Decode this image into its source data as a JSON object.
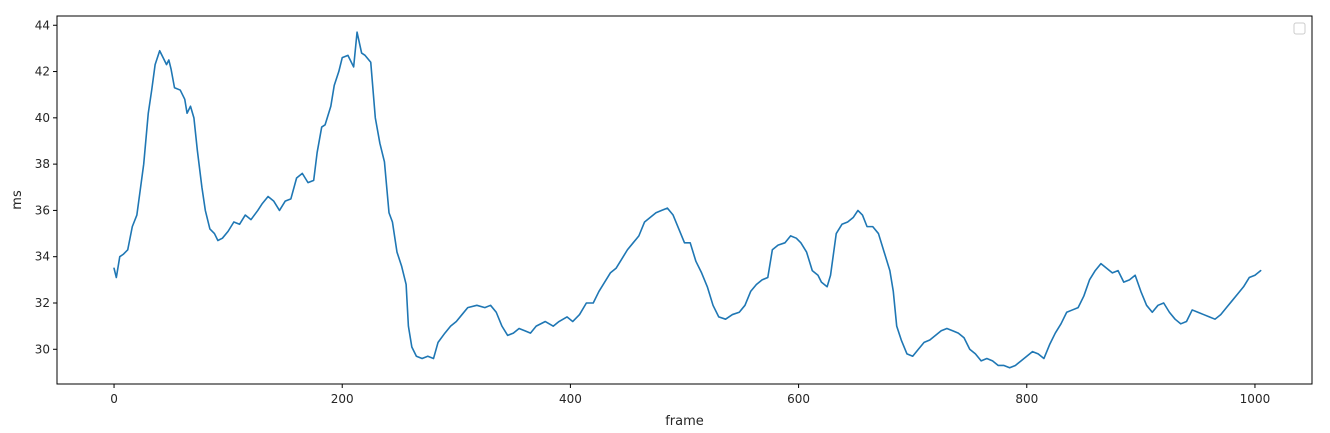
{
  "chart_data": {
    "type": "line",
    "title": "",
    "xlabel": "frame",
    "ylabel": "ms",
    "xlim": [
      -50,
      1050
    ],
    "ylim": [
      28.5,
      44.4
    ],
    "x_ticks": [
      0,
      200,
      400,
      600,
      800,
      1000
    ],
    "y_ticks": [
      30,
      32,
      34,
      36,
      38,
      40,
      42,
      44
    ],
    "grid": false,
    "legend": "top-right",
    "legend_entries": [],
    "series": [
      {
        "color": "#1f77b4",
        "points": [
          [
            0,
            33.5
          ],
          [
            2,
            33.1
          ],
          [
            5,
            34.0
          ],
          [
            8,
            34.1
          ],
          [
            12,
            34.3
          ],
          [
            16,
            35.3
          ],
          [
            20,
            35.8
          ],
          [
            23,
            36.9
          ],
          [
            26,
            38.0
          ],
          [
            30,
            40.2
          ],
          [
            33,
            41.2
          ],
          [
            36,
            42.3
          ],
          [
            40,
            42.9
          ],
          [
            43,
            42.6
          ],
          [
            46,
            42.3
          ],
          [
            48,
            42.5
          ],
          [
            50,
            42.1
          ],
          [
            53,
            41.3
          ],
          [
            58,
            41.2
          ],
          [
            62,
            40.8
          ],
          [
            64,
            40.2
          ],
          [
            67,
            40.5
          ],
          [
            70,
            40.0
          ],
          [
            73,
            38.6
          ],
          [
            77,
            37.0
          ],
          [
            80,
            36.0
          ],
          [
            84,
            35.2
          ],
          [
            88,
            35.0
          ],
          [
            91,
            34.7
          ],
          [
            95,
            34.8
          ],
          [
            100,
            35.1
          ],
          [
            105,
            35.5
          ],
          [
            110,
            35.4
          ],
          [
            115,
            35.8
          ],
          [
            120,
            35.6
          ],
          [
            126,
            36.0
          ],
          [
            130,
            36.3
          ],
          [
            135,
            36.6
          ],
          [
            140,
            36.4
          ],
          [
            145,
            36.0
          ],
          [
            150,
            36.4
          ],
          [
            155,
            36.5
          ],
          [
            160,
            37.4
          ],
          [
            165,
            37.6
          ],
          [
            170,
            37.2
          ],
          [
            175,
            37.3
          ],
          [
            178,
            38.5
          ],
          [
            182,
            39.6
          ],
          [
            185,
            39.7
          ],
          [
            190,
            40.5
          ],
          [
            193,
            41.4
          ],
          [
            197,
            42.0
          ],
          [
            200,
            42.6
          ],
          [
            205,
            42.7
          ],
          [
            210,
            42.2
          ],
          [
            213,
            43.7
          ],
          [
            217,
            42.8
          ],
          [
            220,
            42.7
          ],
          [
            225,
            42.4
          ],
          [
            229,
            40.0
          ],
          [
            233,
            38.9
          ],
          [
            237,
            38.1
          ],
          [
            241,
            35.9
          ],
          [
            244,
            35.5
          ],
          [
            248,
            34.2
          ],
          [
            252,
            33.6
          ],
          [
            256,
            32.8
          ],
          [
            258,
            31.0
          ],
          [
            261,
            30.1
          ],
          [
            265,
            29.7
          ],
          [
            270,
            29.6
          ],
          [
            275,
            29.7
          ],
          [
            280,
            29.6
          ],
          [
            284,
            30.3
          ],
          [
            290,
            30.7
          ],
          [
            295,
            31.0
          ],
          [
            300,
            31.2
          ],
          [
            305,
            31.5
          ],
          [
            310,
            31.8
          ],
          [
            318,
            31.9
          ],
          [
            325,
            31.8
          ],
          [
            330,
            31.9
          ],
          [
            335,
            31.6
          ],
          [
            340,
            31.0
          ],
          [
            345,
            30.6
          ],
          [
            350,
            30.7
          ],
          [
            355,
            30.9
          ],
          [
            360,
            30.8
          ],
          [
            365,
            30.7
          ],
          [
            370,
            31.0
          ],
          [
            378,
            31.2
          ],
          [
            385,
            31.0
          ],
          [
            390,
            31.2
          ],
          [
            397,
            31.4
          ],
          [
            402,
            31.2
          ],
          [
            408,
            31.5
          ],
          [
            414,
            32.0
          ],
          [
            420,
            32.0
          ],
          [
            425,
            32.5
          ],
          [
            430,
            32.9
          ],
          [
            435,
            33.3
          ],
          [
            440,
            33.5
          ],
          [
            445,
            33.9
          ],
          [
            450,
            34.3
          ],
          [
            455,
            34.6
          ],
          [
            460,
            34.9
          ],
          [
            465,
            35.5
          ],
          [
            470,
            35.7
          ],
          [
            475,
            35.9
          ],
          [
            480,
            36.0
          ],
          [
            485,
            36.1
          ],
          [
            490,
            35.8
          ],
          [
            495,
            35.2
          ],
          [
            500,
            34.6
          ],
          [
            505,
            34.6
          ],
          [
            510,
            33.8
          ],
          [
            515,
            33.3
          ],
          [
            520,
            32.7
          ],
          [
            525,
            31.9
          ],
          [
            530,
            31.4
          ],
          [
            536,
            31.3
          ],
          [
            542,
            31.5
          ],
          [
            548,
            31.6
          ],
          [
            553,
            31.9
          ],
          [
            558,
            32.5
          ],
          [
            563,
            32.8
          ],
          [
            568,
            33.0
          ],
          [
            573,
            33.1
          ],
          [
            577,
            34.3
          ],
          [
            582,
            34.5
          ],
          [
            588,
            34.6
          ],
          [
            593,
            34.9
          ],
          [
            598,
            34.8
          ],
          [
            602,
            34.6
          ],
          [
            607,
            34.2
          ],
          [
            612,
            33.4
          ],
          [
            617,
            33.2
          ],
          [
            620,
            32.9
          ],
          [
            625,
            32.7
          ],
          [
            628,
            33.2
          ],
          [
            633,
            35.0
          ],
          [
            638,
            35.4
          ],
          [
            643,
            35.5
          ],
          [
            648,
            35.7
          ],
          [
            652,
            36.0
          ],
          [
            656,
            35.8
          ],
          [
            660,
            35.3
          ],
          [
            665,
            35.3
          ],
          [
            670,
            35.0
          ],
          [
            675,
            34.2
          ],
          [
            680,
            33.4
          ],
          [
            683,
            32.5
          ],
          [
            686,
            31.0
          ],
          [
            690,
            30.4
          ],
          [
            695,
            29.8
          ],
          [
            700,
            29.7
          ],
          [
            705,
            30.0
          ],
          [
            710,
            30.3
          ],
          [
            715,
            30.4
          ],
          [
            720,
            30.6
          ],
          [
            725,
            30.8
          ],
          [
            730,
            30.9
          ],
          [
            735,
            30.8
          ],
          [
            740,
            30.7
          ],
          [
            745,
            30.5
          ],
          [
            750,
            30.0
          ],
          [
            755,
            29.8
          ],
          [
            760,
            29.5
          ],
          [
            765,
            29.6
          ],
          [
            770,
            29.5
          ],
          [
            775,
            29.3
          ],
          [
            780,
            29.3
          ],
          [
            785,
            29.2
          ],
          [
            790,
            29.3
          ],
          [
            795,
            29.5
          ],
          [
            800,
            29.7
          ],
          [
            805,
            29.9
          ],
          [
            810,
            29.8
          ],
          [
            815,
            29.6
          ],
          [
            820,
            30.2
          ],
          [
            825,
            30.7
          ],
          [
            830,
            31.1
          ],
          [
            835,
            31.6
          ],
          [
            840,
            31.7
          ],
          [
            845,
            31.8
          ],
          [
            850,
            32.3
          ],
          [
            855,
            33.0
          ],
          [
            860,
            33.4
          ],
          [
            865,
            33.7
          ],
          [
            870,
            33.5
          ],
          [
            875,
            33.3
          ],
          [
            880,
            33.4
          ],
          [
            885,
            32.9
          ],
          [
            890,
            33.0
          ],
          [
            895,
            33.2
          ],
          [
            900,
            32.5
          ],
          [
            905,
            31.9
          ],
          [
            910,
            31.6
          ],
          [
            915,
            31.9
          ],
          [
            920,
            32.0
          ],
          [
            925,
            31.6
          ],
          [
            930,
            31.3
          ],
          [
            935,
            31.1
          ],
          [
            940,
            31.2
          ],
          [
            945,
            31.7
          ],
          [
            950,
            31.6
          ],
          [
            955,
            31.5
          ],
          [
            960,
            31.4
          ],
          [
            965,
            31.3
          ],
          [
            970,
            31.5
          ],
          [
            975,
            31.8
          ],
          [
            980,
            32.1
          ],
          [
            985,
            32.4
          ],
          [
            990,
            32.7
          ],
          [
            995,
            33.1
          ],
          [
            1000,
            33.2
          ],
          [
            1005,
            33.4
          ]
        ]
      }
    ]
  }
}
